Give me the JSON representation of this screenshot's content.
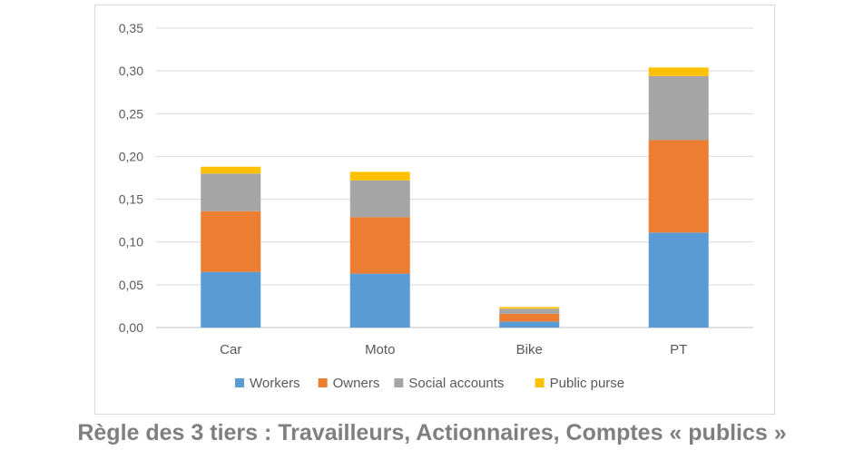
{
  "chart_data": {
    "type": "bar",
    "stacked": true,
    "categories": [
      "Car",
      "Moto",
      "Bike",
      "PT"
    ],
    "series": [
      {
        "name": "Workers",
        "values": [
          0.065,
          0.063,
          0.007,
          0.111
        ],
        "color": "#5b9bd5"
      },
      {
        "name": "Owners",
        "values": [
          0.071,
          0.066,
          0.009,
          0.108
        ],
        "color": "#ed7d31"
      },
      {
        "name": "Social accounts",
        "values": [
          0.044,
          0.043,
          0.006,
          0.075
        ],
        "color": "#a5a5a5"
      },
      {
        "name": "Public purse",
        "values": [
          0.008,
          0.01,
          0.002,
          0.01
        ],
        "color": "#ffc000"
      }
    ],
    "ylim": [
      0,
      0.35
    ],
    "yticks": [
      "0,00",
      "0,05",
      "0,10",
      "0,15",
      "0,20",
      "0,25",
      "0,30",
      "0,35"
    ],
    "grid": true,
    "legend_position": "bottom",
    "title": "",
    "xlabel": "",
    "ylabel": ""
  },
  "caption": "Règle des 3 tiers : Travailleurs, Actionnaires, Comptes « publics »"
}
